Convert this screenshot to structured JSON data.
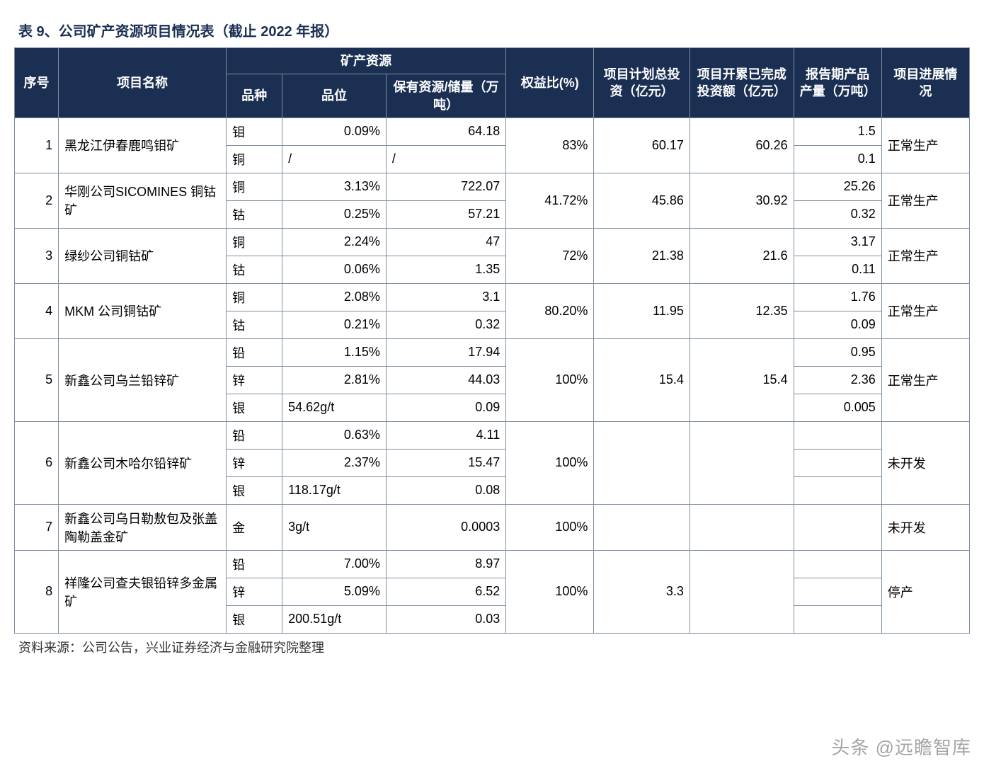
{
  "title": "表 9、公司矿产资源项目情况表（截止 2022 年报）",
  "source": "资料来源：公司公告，兴业证券经济与金融研究院整理",
  "watermark": "头条 @远瞻智库",
  "headers": {
    "seq": "序号",
    "name": "项目名称",
    "resources_group": "矿产资源",
    "variety": "品种",
    "grade": "品位",
    "reserve": "保有资源/储量（万吨）",
    "equity": "权益比(%)",
    "planned": "项目计划总投资（亿元）",
    "completed": "项目开累已完成投资额（亿元）",
    "output": "报告期产品产量（万吨）",
    "status": "项目进展情况"
  },
  "rows": [
    {
      "seq": "1",
      "name": "黑龙江伊春鹿鸣钼矿",
      "equity": "83%",
      "planned": "60.17",
      "completed": "60.26",
      "status": "正常生产",
      "sub": [
        {
          "variety": "钼",
          "grade": "0.09%",
          "reserve": "64.18",
          "output": "1.5"
        },
        {
          "variety": "铜",
          "grade": "/",
          "reserve": "/",
          "output": "0.1"
        }
      ]
    },
    {
      "seq": "2",
      "name": "华刚公司SICOMINES 铜钴矿",
      "equity": "41.72%",
      "planned": "45.86",
      "completed": "30.92",
      "status": "正常生产",
      "sub": [
        {
          "variety": "铜",
          "grade": "3.13%",
          "reserve": "722.07",
          "output": "25.26"
        },
        {
          "variety": "钴",
          "grade": "0.25%",
          "reserve": "57.21",
          "output": "0.32"
        }
      ]
    },
    {
      "seq": "3",
      "name": "绿纱公司铜钴矿",
      "equity": "72%",
      "planned": "21.38",
      "completed": "21.6",
      "status": "正常生产",
      "sub": [
        {
          "variety": "铜",
          "grade": "2.24%",
          "reserve": "47",
          "output": "3.17"
        },
        {
          "variety": "钴",
          "grade": "0.06%",
          "reserve": "1.35",
          "output": "0.11"
        }
      ]
    },
    {
      "seq": "4",
      "name": "MKM 公司铜钴矿",
      "equity": "80.20%",
      "planned": "11.95",
      "completed": "12.35",
      "status": "正常生产",
      "sub": [
        {
          "variety": "铜",
          "grade": "2.08%",
          "reserve": "3.1",
          "output": "1.76"
        },
        {
          "variety": "钴",
          "grade": "0.21%",
          "reserve": "0.32",
          "output": "0.09"
        }
      ]
    },
    {
      "seq": "5",
      "name": "新鑫公司乌兰铅锌矿",
      "equity": "100%",
      "planned": "15.4",
      "completed": "15.4",
      "status": "正常生产",
      "sub": [
        {
          "variety": "铅",
          "grade": "1.15%",
          "reserve": "17.94",
          "output": "0.95"
        },
        {
          "variety": "锌",
          "grade": "2.81%",
          "reserve": "44.03",
          "output": "2.36"
        },
        {
          "variety": "银",
          "grade": "54.62g/t",
          "reserve": "0.09",
          "output": "0.005"
        }
      ]
    },
    {
      "seq": "6",
      "name": "新鑫公司木哈尔铅锌矿",
      "equity": "100%",
      "planned": "",
      "completed": "",
      "status": "未开发",
      "sub": [
        {
          "variety": "铅",
          "grade": "0.63%",
          "reserve": "4.11",
          "output": ""
        },
        {
          "variety": "锌",
          "grade": "2.37%",
          "reserve": "15.47",
          "output": ""
        },
        {
          "variety": "银",
          "grade": "118.17g/t",
          "reserve": "0.08",
          "output": ""
        }
      ]
    },
    {
      "seq": "7",
      "name": "新鑫公司乌日勒敖包及张盖陶勒盖金矿",
      "equity": "100%",
      "planned": "",
      "completed": "",
      "status": "未开发",
      "sub": [
        {
          "variety": "金",
          "grade": "3g/t",
          "reserve": "0.0003",
          "output": ""
        }
      ]
    },
    {
      "seq": "8",
      "name": "祥隆公司查夫银铅锌多金属矿",
      "equity": "100%",
      "planned": "3.3",
      "completed": "",
      "status": "停产",
      "sub": [
        {
          "variety": "铅",
          "grade": "7.00%",
          "reserve": "8.97",
          "output": ""
        },
        {
          "variety": "锌",
          "grade": "5.09%",
          "reserve": "6.52",
          "output": ""
        },
        {
          "variety": "银",
          "grade": "200.51g/t",
          "reserve": "0.03",
          "output": ""
        }
      ]
    }
  ],
  "colors": {
    "header_bg": "#1a2f52",
    "header_fg": "#ffffff",
    "border": "#7f8ea3",
    "title_color": "#1a2f52"
  }
}
